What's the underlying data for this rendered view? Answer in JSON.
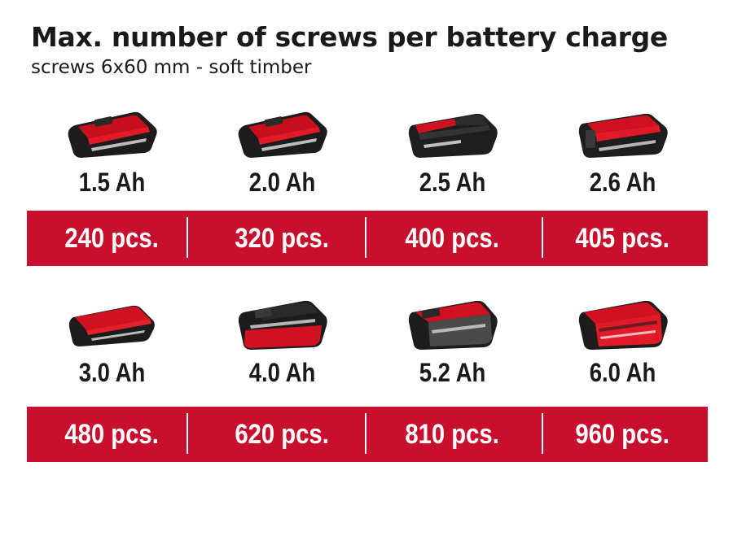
{
  "title": "Max. number of screws per battery charge",
  "subtitle": "screws 6x60 mm - soft timber",
  "colors": {
    "band": "#c8102e",
    "battery_red": "#d0111f",
    "battery_black": "#1c1c1c",
    "text": "#1a1a1a"
  },
  "rows": [
    {
      "items": [
        {
          "capacity": "1.5 Ah",
          "count": "240 pcs.",
          "icon": "battery-compact-icon"
        },
        {
          "capacity": "2.0 Ah",
          "count": "320 pcs.",
          "icon": "battery-compact-icon"
        },
        {
          "capacity": "2.5 Ah",
          "count": "400 pcs.",
          "icon": "battery-compact-black-icon"
        },
        {
          "capacity": "2.6 Ah",
          "count": "405 pcs.",
          "icon": "battery-compact-black-icon"
        }
      ]
    },
    {
      "items": [
        {
          "capacity": "3.0 Ah",
          "count": "480 pcs.",
          "icon": "battery-slim-icon"
        },
        {
          "capacity": "4.0 Ah",
          "count": "620 pcs.",
          "icon": "battery-large-icon"
        },
        {
          "capacity": "5.2 Ah",
          "count": "810 pcs.",
          "icon": "battery-large-black-icon"
        },
        {
          "capacity": "6.0 Ah",
          "count": "960 pcs.",
          "icon": "battery-large-icon"
        }
      ]
    }
  ]
}
